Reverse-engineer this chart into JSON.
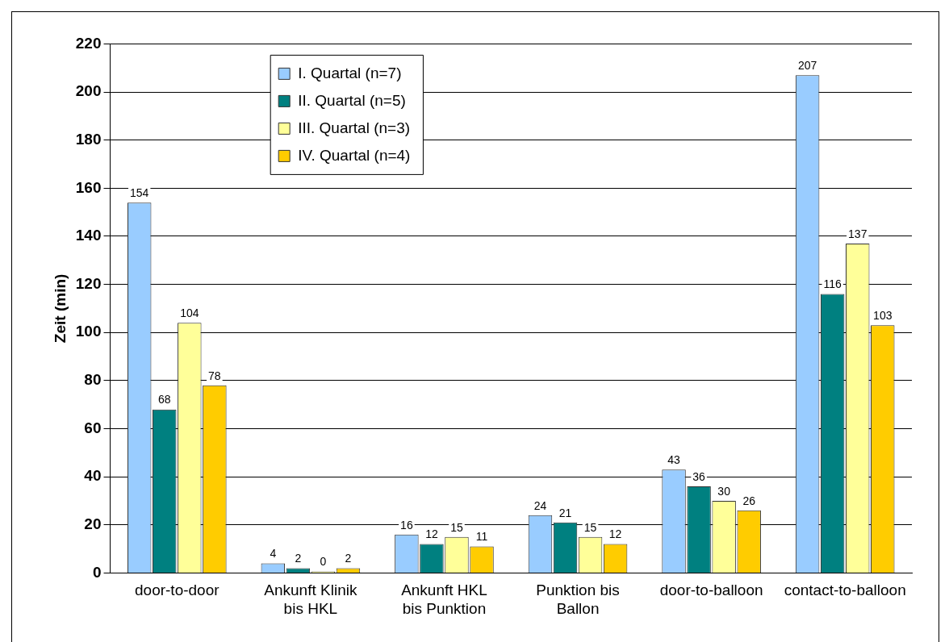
{
  "chart_data": {
    "type": "bar",
    "ylabel": "Zeit (min)",
    "categories": [
      "door-to-door",
      "Ankunft Klinik bis HKL",
      "Ankunft HKL bis Punktion",
      "Punktion bis Ballon",
      "door-to-balloon",
      "contact-to-balloon"
    ],
    "series": [
      {
        "name": "I. Quartal (n=7)",
        "color": "#99ccff",
        "values": [
          154,
          4,
          16,
          24,
          43,
          207
        ]
      },
      {
        "name": "II. Quartal (n=5)",
        "color": "#008080",
        "values": [
          68,
          2,
          12,
          21,
          36,
          116
        ]
      },
      {
        "name": "III. Quartal (n=3)",
        "color": "#ffff99",
        "values": [
          104,
          0,
          15,
          15,
          30,
          137
        ]
      },
      {
        "name": "IV. Quartal (n=4)",
        "color": "#ffcc00",
        "values": [
          78,
          2,
          11,
          12,
          26,
          103
        ]
      }
    ],
    "ylim": [
      0,
      220
    ],
    "yticks": [
      0,
      20,
      40,
      60,
      80,
      100,
      120,
      140,
      160,
      180,
      200,
      220
    ],
    "grid": "y",
    "legend": "top left",
    "data_labels": true
  }
}
